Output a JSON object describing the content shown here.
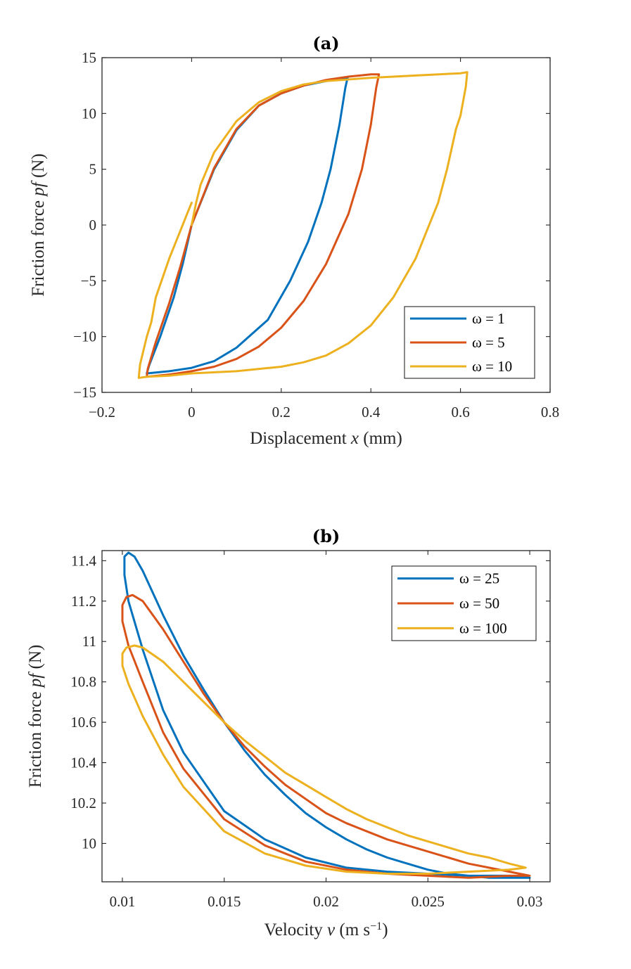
{
  "chart_data": [
    {
      "type": "line",
      "title": "(a)",
      "xlabel": "Displacement x (mm)",
      "ylabel": "Friction force pf (N)",
      "xlim": [
        -0.2,
        0.8
      ],
      "ylim": [
        -15,
        15
      ],
      "xticks": [
        -0.2,
        0,
        0.2,
        0.4,
        0.6,
        0.8
      ],
      "xtick_labels": [
        "−0.2",
        "0",
        "0.2",
        "0.4",
        "0.6",
        "0.8"
      ],
      "yticks": [
        -15,
        -10,
        -5,
        0,
        5,
        10,
        15
      ],
      "ytick_labels": [
        "−15",
        "−10",
        "−5",
        "0",
        "5",
        "10",
        "15"
      ],
      "legend_position": "bottom-right",
      "series": [
        {
          "name": "ω = 1",
          "color": "#0072BD",
          "points": [
            [
              0,
              0
            ],
            [
              0.05,
              5
            ],
            [
              0.1,
              8.5
            ],
            [
              0.15,
              10.7
            ],
            [
              0.2,
              11.8
            ],
            [
              0.25,
              12.5
            ],
            [
              0.3,
              12.9
            ],
            [
              0.348,
              13.2
            ],
            [
              0.343,
              12.3
            ],
            [
              0.33,
              9
            ],
            [
              0.31,
              5
            ],
            [
              0.29,
              2
            ],
            [
              0.26,
              -1.5
            ],
            [
              0.22,
              -5
            ],
            [
              0.17,
              -8.5
            ],
            [
              0.1,
              -11
            ],
            [
              0.05,
              -12.2
            ],
            [
              0,
              -12.8
            ],
            [
              -0.05,
              -13.1
            ],
            [
              -0.1,
              -13.3
            ],
            [
              -0.095,
              -12.6
            ],
            [
              -0.07,
              -10
            ],
            [
              -0.04,
              -6.5
            ],
            [
              -0.02,
              -3.5
            ],
            [
              0,
              0
            ]
          ]
        },
        {
          "name": "ω = 5",
          "color": "#D95319",
          "points": [
            [
              0,
              0
            ],
            [
              0.05,
              5.1
            ],
            [
              0.1,
              8.6
            ],
            [
              0.15,
              10.7
            ],
            [
              0.2,
              11.8
            ],
            [
              0.25,
              12.5
            ],
            [
              0.3,
              13
            ],
            [
              0.35,
              13.3
            ],
            [
              0.4,
              13.5
            ],
            [
              0.418,
              13.5
            ],
            [
              0.412,
              12.3
            ],
            [
              0.4,
              9
            ],
            [
              0.38,
              5
            ],
            [
              0.35,
              1
            ],
            [
              0.3,
              -3.5
            ],
            [
              0.25,
              -6.8
            ],
            [
              0.2,
              -9.2
            ],
            [
              0.15,
              -10.9
            ],
            [
              0.1,
              -12
            ],
            [
              0.05,
              -12.7
            ],
            [
              0,
              -13.1
            ],
            [
              -0.05,
              -13.4
            ],
            [
              -0.1,
              -13.6
            ],
            [
              -0.098,
              -12.9
            ],
            [
              -0.08,
              -10.5
            ],
            [
              -0.05,
              -7
            ],
            [
              -0.025,
              -3.7
            ],
            [
              0,
              0
            ]
          ]
        },
        {
          "name": "ω = 10",
          "color": "#EDB120",
          "points": [
            [
              0,
              0
            ],
            [
              0.01,
              2
            ],
            [
              0.02,
              3.6
            ],
            [
              0.05,
              6.5
            ],
            [
              0.1,
              9.3
            ],
            [
              0.15,
              11
            ],
            [
              0.2,
              12
            ],
            [
              0.25,
              12.6
            ],
            [
              0.3,
              12.9
            ],
            [
              0.4,
              13.2
            ],
            [
              0.5,
              13.4
            ],
            [
              0.6,
              13.6
            ],
            [
              0.615,
              13.7
            ],
            [
              0.612,
              12.4
            ],
            [
              0.6,
              9.8
            ],
            [
              0.59,
              8.6
            ],
            [
              0.57,
              5
            ],
            [
              0.55,
              2
            ],
            [
              0.5,
              -3
            ],
            [
              0.45,
              -6.5
            ],
            [
              0.4,
              -9
            ],
            [
              0.35,
              -10.6
            ],
            [
              0.3,
              -11.7
            ],
            [
              0.25,
              -12.3
            ],
            [
              0.2,
              -12.7
            ],
            [
              0.1,
              -13.1
            ],
            [
              0,
              -13.3
            ],
            [
              -0.05,
              -13.5
            ],
            [
              -0.1,
              -13.6
            ],
            [
              -0.118,
              -13.7
            ],
            [
              -0.115,
              -12.5
            ],
            [
              -0.1,
              -10
            ],
            [
              -0.09,
              -8.7
            ],
            [
              -0.08,
              -6.5
            ],
            [
              -0.05,
              -3
            ],
            [
              -0.025,
              -0.5
            ],
            [
              -0.01,
              1
            ],
            [
              0,
              2
            ]
          ]
        }
      ]
    },
    {
      "type": "line",
      "title": "(b)",
      "xlabel": "Velocity v (m s⁻¹)",
      "ylabel": "Friction force pf (N)",
      "xlim": [
        0.009,
        0.031
      ],
      "ylim": [
        9.81,
        11.45
      ],
      "xticks": [
        0.01,
        0.015,
        0.02,
        0.025,
        0.03
      ],
      "xtick_labels": [
        "0.01",
        "0.015",
        "0.02",
        "0.025",
        "0.03"
      ],
      "yticks": [
        10,
        10.2,
        10.4,
        10.6,
        10.8,
        11,
        11.2,
        11.4
      ],
      "ytick_labels": [
        "10",
        "10.2",
        "10.4",
        "10.6",
        "10.8",
        "11",
        "11.2",
        "11.4"
      ],
      "legend_position": "top-right",
      "series": [
        {
          "name": "ω = 25",
          "color": "#0072BD",
          "points": [
            [
              0.0101,
              11.33
            ],
            [
              0.0101,
              11.42
            ],
            [
              0.0103,
              11.44
            ],
            [
              0.0106,
              11.42
            ],
            [
              0.011,
              11.35
            ],
            [
              0.012,
              11.13
            ],
            [
              0.013,
              10.93
            ],
            [
              0.014,
              10.76
            ],
            [
              0.015,
              10.6
            ],
            [
              0.016,
              10.46
            ],
            [
              0.017,
              10.34
            ],
            [
              0.018,
              10.24
            ],
            [
              0.019,
              10.15
            ],
            [
              0.02,
              10.08
            ],
            [
              0.021,
              10.02
            ],
            [
              0.022,
              9.97
            ],
            [
              0.023,
              9.93
            ],
            [
              0.024,
              9.9
            ],
            [
              0.025,
              9.87
            ],
            [
              0.026,
              9.85
            ],
            [
              0.027,
              9.84
            ],
            [
              0.028,
              9.83
            ],
            [
              0.029,
              9.83
            ],
            [
              0.03,
              9.83
            ],
            [
              0.029,
              9.84
            ],
            [
              0.027,
              9.84
            ],
            [
              0.025,
              9.85
            ],
            [
              0.023,
              9.86
            ],
            [
              0.021,
              9.88
            ],
            [
              0.019,
              9.93
            ],
            [
              0.017,
              10.02
            ],
            [
              0.015,
              10.16
            ],
            [
              0.013,
              10.45
            ],
            [
              0.012,
              10.66
            ],
            [
              0.011,
              10.96
            ],
            [
              0.0103,
              11.2
            ],
            [
              0.0101,
              11.33
            ]
          ]
        },
        {
          "name": "ω = 50",
          "color": "#D95319",
          "points": [
            [
              0.01,
              11.1
            ],
            [
              0.01,
              11.18
            ],
            [
              0.0102,
              11.22
            ],
            [
              0.0105,
              11.23
            ],
            [
              0.011,
              11.2
            ],
            [
              0.012,
              11.06
            ],
            [
              0.013,
              10.9
            ],
            [
              0.014,
              10.74
            ],
            [
              0.015,
              10.6
            ],
            [
              0.016,
              10.48
            ],
            [
              0.017,
              10.38
            ],
            [
              0.018,
              10.29
            ],
            [
              0.019,
              10.22
            ],
            [
              0.02,
              10.15
            ],
            [
              0.021,
              10.1
            ],
            [
              0.022,
              10.06
            ],
            [
              0.023,
              10.02
            ],
            [
              0.024,
              9.99
            ],
            [
              0.025,
              9.96
            ],
            [
              0.026,
              9.93
            ],
            [
              0.027,
              9.9
            ],
            [
              0.028,
              9.88
            ],
            [
              0.029,
              9.86
            ],
            [
              0.03,
              9.84
            ],
            [
              0.029,
              9.84
            ],
            [
              0.027,
              9.83
            ],
            [
              0.025,
              9.84
            ],
            [
              0.023,
              9.85
            ],
            [
              0.021,
              9.87
            ],
            [
              0.019,
              9.91
            ],
            [
              0.017,
              9.99
            ],
            [
              0.015,
              10.12
            ],
            [
              0.013,
              10.37
            ],
            [
              0.012,
              10.55
            ],
            [
              0.011,
              10.8
            ],
            [
              0.0103,
              10.98
            ],
            [
              0.01,
              11.1
            ]
          ]
        },
        {
          "name": "ω = 100",
          "color": "#EDB120",
          "points": [
            [
              0.01,
              10.88
            ],
            [
              0.01,
              10.94
            ],
            [
              0.0102,
              10.97
            ],
            [
              0.0106,
              10.98
            ],
            [
              0.011,
              10.97
            ],
            [
              0.012,
              10.9
            ],
            [
              0.013,
              10.8
            ],
            [
              0.014,
              10.7
            ],
            [
              0.015,
              10.6
            ],
            [
              0.016,
              10.51
            ],
            [
              0.017,
              10.43
            ],
            [
              0.018,
              10.35
            ],
            [
              0.019,
              10.29
            ],
            [
              0.02,
              10.23
            ],
            [
              0.021,
              10.17
            ],
            [
              0.022,
              10.12
            ],
            [
              0.023,
              10.08
            ],
            [
              0.024,
              10.04
            ],
            [
              0.025,
              10.01
            ],
            [
              0.026,
              9.98
            ],
            [
              0.027,
              9.95
            ],
            [
              0.028,
              9.93
            ],
            [
              0.029,
              9.9
            ],
            [
              0.0298,
              9.88
            ],
            [
              0.029,
              9.87
            ],
            [
              0.027,
              9.86
            ],
            [
              0.025,
              9.85
            ],
            [
              0.023,
              9.85
            ],
            [
              0.021,
              9.86
            ],
            [
              0.019,
              9.89
            ],
            [
              0.017,
              9.95
            ],
            [
              0.015,
              10.06
            ],
            [
              0.013,
              10.28
            ],
            [
              0.012,
              10.44
            ],
            [
              0.011,
              10.63
            ],
            [
              0.0103,
              10.79
            ],
            [
              0.01,
              10.88
            ]
          ]
        }
      ]
    }
  ]
}
